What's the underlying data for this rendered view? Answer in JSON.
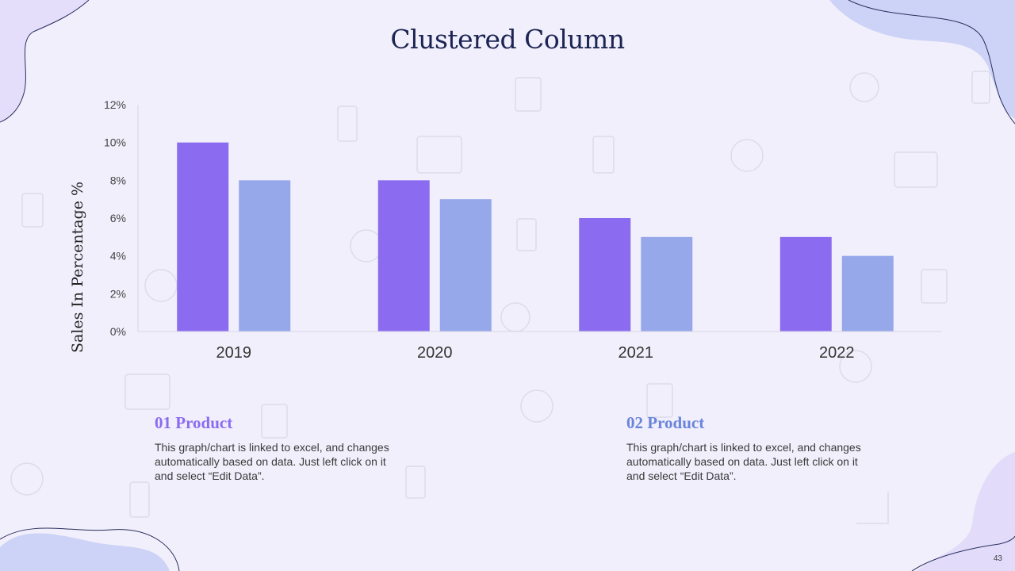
{
  "slide": {
    "title": "Clustered Column",
    "page_number": "43"
  },
  "products": [
    {
      "title": "01 Product",
      "desc": "This graph/chart is linked to excel, and changes automatically based on data. Just left click on it and select “Edit Data”.",
      "color": "#8b6cf0"
    },
    {
      "title": "02 Product",
      "desc": "This graph/chart is linked to excel, and changes automatically based on data. Just left click on it and select “Edit Data”.",
      "color": "#6a84dc"
    }
  ],
  "chart_data": {
    "type": "bar",
    "title": "",
    "xlabel": "",
    "ylabel": "Sales In Percentage %",
    "categories": [
      "2019",
      "2020",
      "2021",
      "2022"
    ],
    "series": [
      {
        "name": "01 Product",
        "values": [
          10,
          8,
          6,
          5
        ],
        "color": "#8b6cf0"
      },
      {
        "name": "02 Product",
        "values": [
          8,
          7,
          5,
          4
        ],
        "color": "#96a8ea"
      }
    ],
    "ylim": [
      0,
      12
    ],
    "yticks": [
      "0%",
      "2%",
      "4%",
      "6%",
      "8%",
      "10%",
      "12%"
    ],
    "grid": false,
    "legend": "none"
  }
}
